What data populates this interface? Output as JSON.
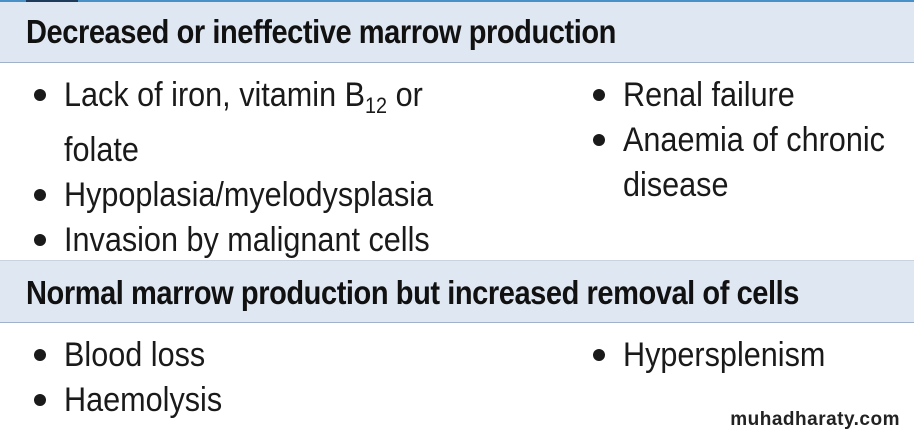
{
  "sections": [
    {
      "title": "Decreased or ineffective marrow production",
      "left_items": [
        {
          "line1_pre": "Lack of iron, vitamin B",
          "line1_sub": "12",
          "line1_post": " or",
          "line2": "folate"
        },
        {
          "text": "Hypoplasia/myelodysplasia"
        },
        {
          "text": "Invasion by malignant cells"
        }
      ],
      "right_items": [
        {
          "text": "Renal failure"
        },
        {
          "line1": "Anaemia of chronic",
          "line2": "disease"
        }
      ]
    },
    {
      "title": "Normal marrow production but increased removal of cells",
      "left_items": [
        {
          "text": "Blood loss"
        },
        {
          "text": "Haemolysis"
        }
      ],
      "right_items": [
        {
          "text": "Hypersplenism"
        }
      ]
    }
  ],
  "watermark": "muhadharaty.com",
  "colors": {
    "header_bg": "#dfe7f2",
    "accent_line": "#4a90c8",
    "text": "#1a1a1a"
  }
}
